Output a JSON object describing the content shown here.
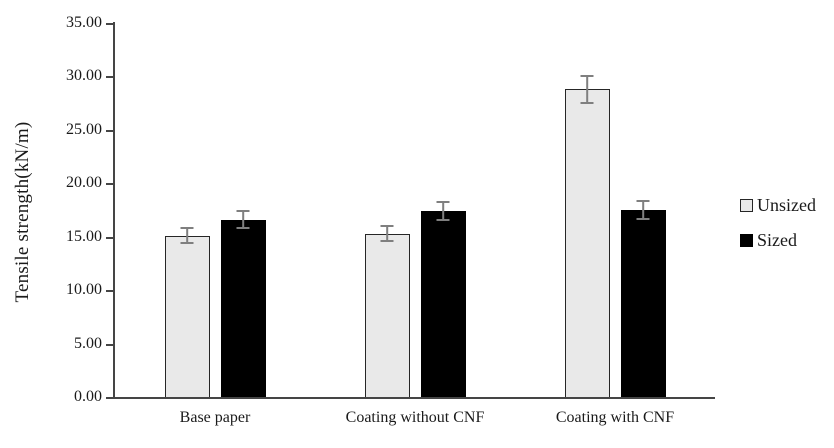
{
  "chart_data": {
    "type": "bar",
    "title": "",
    "ylabel": "Tensile strength(kN/m)",
    "xlabel": "",
    "ylim": [
      0,
      35
    ],
    "ytick_step": 5,
    "ytick_labels": [
      "0.00",
      "5.00",
      "10.00",
      "15.00",
      "20.00",
      "25.00",
      "30.00",
      "35.00"
    ],
    "categories": [
      "Base paper",
      "Coating without CNF",
      "Coating with CNF"
    ],
    "series": [
      {
        "name": "Unsized",
        "values": [
          15.1,
          15.3,
          28.8
        ],
        "errors": [
          0.8,
          0.8,
          1.35
        ],
        "fill": "#e9e9e9",
        "border": "#262626"
      },
      {
        "name": "Sized",
        "values": [
          16.6,
          17.4,
          17.5
        ],
        "errors": [
          0.9,
          0.9,
          0.95
        ],
        "fill": "#000000",
        "border": "#000000"
      }
    ],
    "grid": false,
    "error_bars": true,
    "legend_position": "right"
  },
  "colors": {
    "axis": "#454545",
    "error_bar": "#7f7f7f",
    "text": "#1a1a1a",
    "background": "#ffffff"
  }
}
